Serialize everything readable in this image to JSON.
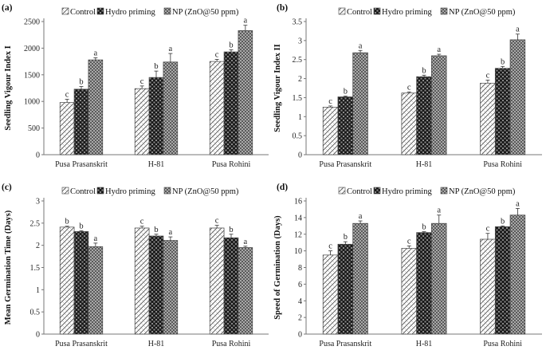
{
  "chart_data": [
    {
      "type": "bar",
      "panel_label": "(a)",
      "ylabel": "Seedling Vigour Index I",
      "ylim": [
        0,
        2500
      ],
      "yticks": [
        "0",
        "500",
        "1000",
        "1500",
        "2000",
        "2500"
      ],
      "categories": [
        "Pusa Prasanskrit",
        "H-81",
        "Pusa Rohini"
      ],
      "legend": [
        "Control",
        "Hydro priming",
        "NP (ZnO@50 ppm)"
      ],
      "series": [
        {
          "name": "Control",
          "values": [
            980,
            1240,
            1750
          ],
          "errors": [
            60,
            50,
            40
          ],
          "letters": [
            "c",
            "c",
            "c"
          ]
        },
        {
          "name": "Hydro priming",
          "values": [
            1230,
            1450,
            1930
          ],
          "errors": [
            50,
            120,
            40
          ],
          "letters": [
            "b",
            "b",
            "b"
          ]
        },
        {
          "name": "NP (ZnO@50 ppm)",
          "values": [
            1780,
            1740,
            2330
          ],
          "errors": [
            40,
            160,
            100
          ],
          "letters": [
            "a",
            "a",
            "a"
          ]
        }
      ]
    },
    {
      "type": "bar",
      "panel_label": "(b)",
      "ylabel": "Seedling Vigour Index II",
      "ylim": [
        0,
        3.5
      ],
      "yticks": [
        "0",
        "0.5",
        "1",
        "1.5",
        "2",
        "2.5",
        "3",
        "3.5"
      ],
      "categories": [
        "Pusa Prasanskrit",
        "H-81",
        "Pusa Rohini"
      ],
      "legend": [
        "Control",
        "Hydro priming",
        "NP (ZnO@50 ppm)"
      ],
      "series": [
        {
          "name": "Control",
          "values": [
            1.25,
            1.62,
            1.88
          ],
          "errors": [
            0.03,
            0.03,
            0.08
          ],
          "letters": [
            "c",
            "c",
            "c"
          ]
        },
        {
          "name": "Hydro priming",
          "values": [
            1.52,
            2.05,
            2.27
          ],
          "errors": [
            0.02,
            0.04,
            0.05
          ],
          "letters": [
            "b",
            "b",
            "b"
          ]
        },
        {
          "name": "NP (ZnO@50 ppm)",
          "values": [
            2.68,
            2.6,
            3.02
          ],
          "errors": [
            0.06,
            0.04,
            0.15
          ],
          "letters": [
            "a",
            "a",
            "a"
          ]
        }
      ]
    },
    {
      "type": "bar",
      "panel_label": "(c)",
      "ylabel": "Mean Germination Time (Days)",
      "ylim": [
        0,
        3
      ],
      "yticks": [
        "0",
        "0.5",
        "1",
        "1.5",
        "2",
        "2.5",
        "3"
      ],
      "categories": [
        "Pusa Prasanskrit",
        "H-81",
        "Pusa Rohini"
      ],
      "legend": [
        "Control",
        "Hydro priming",
        "NP (ZnO@50 ppm)"
      ],
      "series": [
        {
          "name": "Control",
          "values": [
            2.41,
            2.39,
            2.39
          ],
          "errors": [
            0.02,
            0.04,
            0.06
          ],
          "letters": [
            "b",
            "c",
            "c"
          ]
        },
        {
          "name": "Hydro priming",
          "values": [
            2.31,
            2.21,
            2.17
          ],
          "errors": [
            0.02,
            0.04,
            0.08
          ],
          "letters": [
            "b",
            "b",
            "b"
          ]
        },
        {
          "name": "NP (ZnO@50 ppm)",
          "values": [
            1.97,
            2.11,
            1.95
          ],
          "errors": [
            0.08,
            0.08,
            0.03
          ],
          "letters": [
            "a",
            "a",
            "a"
          ]
        }
      ]
    },
    {
      "type": "bar",
      "panel_label": "(d)",
      "ylabel": "Speed of Germination (Days)",
      "ylim": [
        0,
        16
      ],
      "yticks": [
        "0",
        "2",
        "4",
        "6",
        "8",
        "10",
        "12",
        "14",
        "16"
      ],
      "categories": [
        "Pusa Prasanskrit",
        "H-81",
        "Pusa Rohini"
      ],
      "legend": [
        "Control",
        "Hydro priming",
        "NP (ZnO@50 ppm)"
      ],
      "series": [
        {
          "name": "Control",
          "values": [
            9.5,
            10.3,
            11.4
          ],
          "errors": [
            0.5,
            0.3,
            0.7
          ],
          "letters": [
            "c",
            "c",
            "c"
          ]
        },
        {
          "name": "Hydro priming",
          "values": [
            10.8,
            12.2,
            12.9
          ],
          "errors": [
            0.3,
            0.1,
            0.1
          ],
          "letters": [
            "b",
            "b",
            "b"
          ]
        },
        {
          "name": "NP (ZnO@50 ppm)",
          "values": [
            13.3,
            13.3,
            14.3
          ],
          "errors": [
            0.3,
            1.0,
            0.8
          ],
          "letters": [
            "a",
            "a",
            "a"
          ]
        }
      ]
    }
  ]
}
